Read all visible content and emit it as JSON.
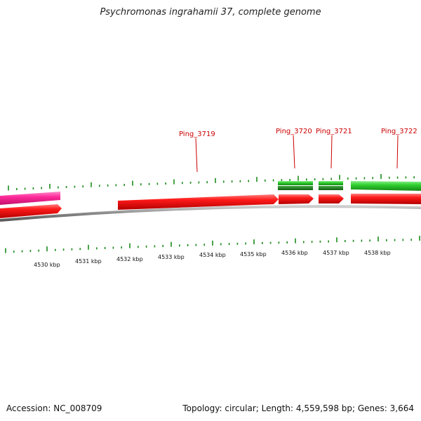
{
  "title": "Psychromonas ingrahamii 37, complete genome",
  "footer": {
    "accession": "Accession: NC_008709",
    "summary": "Topology: circular; Length: 4,559,598 bp; Genes: 3,664"
  },
  "colors": {
    "forward_gene": "#ff1a1a",
    "forward_gene_alt": "#ff2a9a",
    "reverse_gene": "#2fcf2f",
    "reverse_gene_dark": "#1f8a1f",
    "label": "#cc0000",
    "tick_green": "#1a8a1a",
    "backbone": "#888888"
  },
  "genes": [
    {
      "name": "Ping_3719",
      "labeled": true,
      "strand": "forward",
      "color": "forward_gene",
      "start_kbp": 4531.3,
      "end_kbp": 4535.4
    },
    {
      "name": "",
      "labeled": false,
      "strand": "forward",
      "color": "forward_gene",
      "start_kbp": 4529.0,
      "end_kbp": 4530.37
    },
    {
      "name": "",
      "labeled": false,
      "strand": "forward",
      "color": "forward_gene_alt",
      "start_kbp": 4529.0,
      "end_kbp": 4530.37
    },
    {
      "name": "Ping_3720",
      "labeled": true,
      "strand": "forward",
      "color": "forward_gene",
      "start_kbp": 4535.4,
      "end_kbp": 4536.3
    },
    {
      "name": "Ping_3721",
      "labeled": true,
      "strand": "forward",
      "color": "forward_gene",
      "start_kbp": 4536.55,
      "end_kbp": 4537.15
    },
    {
      "name": "Ping_3722",
      "labeled": true,
      "strand": "forward",
      "color": "forward_gene",
      "start_kbp": 4537.25,
      "end_kbp": 4539.0
    },
    {
      "name": "",
      "labeled": false,
      "strand": "reverse",
      "color": "reverse_gene",
      "start_kbp": 4535.4,
      "end_kbp": 4536.3
    },
    {
      "name": "",
      "labeled": false,
      "strand": "reverse",
      "color": "reverse_gene",
      "start_kbp": 4536.55,
      "end_kbp": 4537.15
    },
    {
      "name": "",
      "labeled": false,
      "strand": "reverse",
      "color": "reverse_gene",
      "start_kbp": 4537.25,
      "end_kbp": 4539.0
    }
  ],
  "kbp_labels": [
    "4530 kbp",
    "4531 kbp",
    "4532 kbp",
    "4533 kbp",
    "4534 kbp",
    "4535 kbp",
    "4536 kbp",
    "4537 kbp",
    "4538 kbp"
  ],
  "kbp_values": [
    4530,
    4531,
    4532,
    4533,
    4534,
    4535,
    4536,
    4537,
    4538
  ]
}
